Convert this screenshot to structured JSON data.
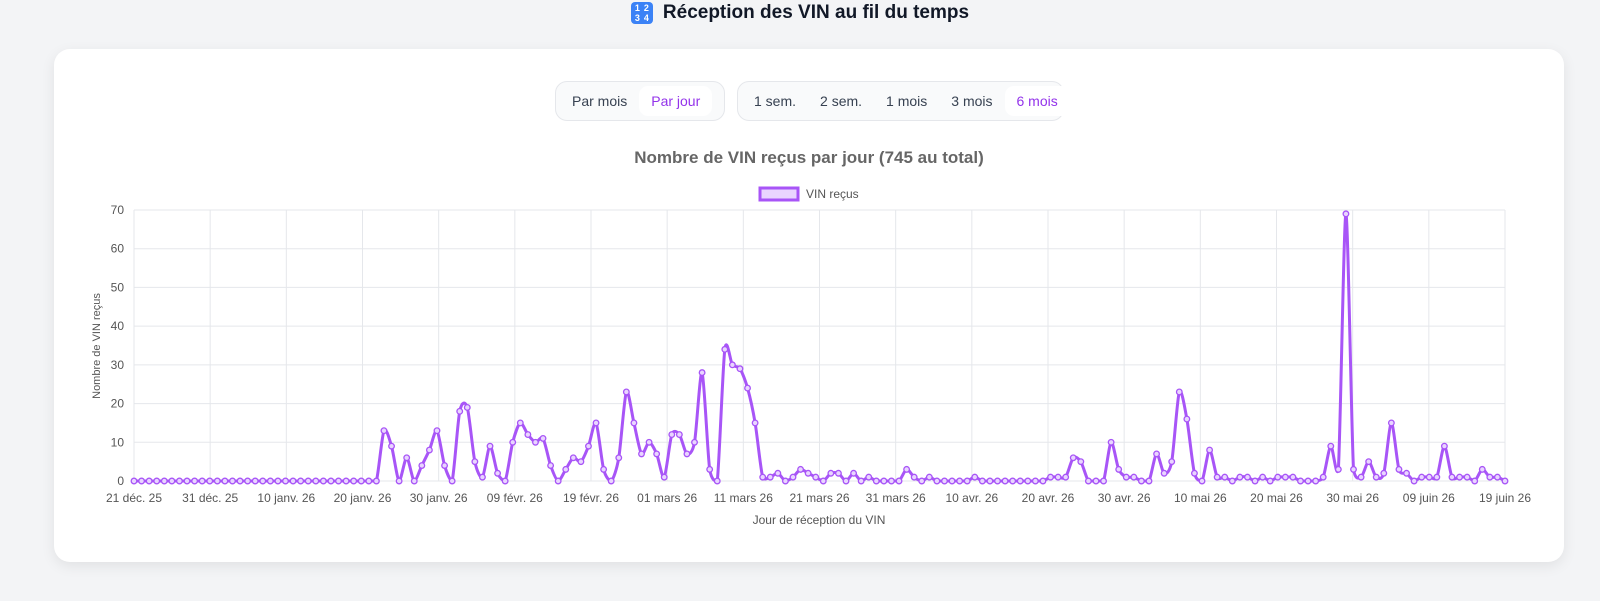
{
  "header": {
    "icon": "numbers-icon",
    "icon_glyphs": [
      "1",
      "2",
      "3",
      "4"
    ],
    "title": "Réception des VIN au fil du temps"
  },
  "controls": {
    "mode": [
      {
        "label": "Par mois",
        "active": false
      },
      {
        "label": "Par jour",
        "active": true
      }
    ],
    "range": [
      {
        "label": "1 sem.",
        "active": false
      },
      {
        "label": "2 sem.",
        "active": false
      },
      {
        "label": "1 mois",
        "active": false
      },
      {
        "label": "3 mois",
        "active": false
      },
      {
        "label": "6 mois",
        "active": true
      }
    ]
  },
  "colors": {
    "line": "#a855f7",
    "fill": "#e9d5ff",
    "accent": "#9333ea",
    "grid": "#e5e7eb"
  },
  "chart_data": {
    "type": "line",
    "title": "Nombre de VIN reçus par jour (745 au total)",
    "xlabel": "Jour de réception du VIN",
    "ylabel": "Nombre de VIN reçus",
    "ylim": [
      0,
      70
    ],
    "yticks": [
      "0",
      "10",
      "20",
      "30",
      "40",
      "50",
      "60",
      "70"
    ],
    "xtick_labels": [
      "21 déc. 25",
      "31 déc. 25",
      "10 janv. 26",
      "20 janv. 26",
      "30 janv. 26",
      "09 févr. 26",
      "19 févr. 26",
      "01 mars 26",
      "11 mars 26",
      "21 mars 26",
      "31 mars 26",
      "10 avr. 26",
      "20 avr. 26",
      "30 avr. 26",
      "10 mai 26",
      "20 mai 26",
      "30 mai 26",
      "09 juin 26",
      "19 juin 26"
    ],
    "legend": "top",
    "grid": true,
    "series": [
      {
        "name": "VIN reçus",
        "values": [
          0,
          0,
          0,
          0,
          0,
          0,
          0,
          0,
          0,
          0,
          0,
          0,
          0,
          0,
          0,
          0,
          0,
          0,
          0,
          0,
          0,
          0,
          0,
          0,
          0,
          0,
          0,
          0,
          0,
          0,
          0,
          0,
          0,
          13,
          9,
          0,
          6,
          0,
          4,
          8,
          13,
          4,
          0,
          18,
          19,
          5,
          1,
          9,
          2,
          0,
          10,
          15,
          12,
          10,
          11,
          4,
          0,
          3,
          6,
          5,
          9,
          15,
          3,
          0,
          6,
          23,
          15,
          7,
          10,
          7,
          1,
          12,
          12,
          7,
          10,
          28,
          3,
          0,
          34,
          30,
          29,
          24,
          15,
          1,
          1,
          2,
          0,
          1,
          3,
          2,
          1,
          0,
          2,
          2,
          0,
          2,
          0,
          1,
          0,
          0,
          0,
          0,
          3,
          1,
          0,
          1,
          0,
          0,
          0,
          0,
          0,
          1,
          0,
          0,
          0,
          0,
          0,
          0,
          0,
          0,
          0,
          1,
          1,
          1,
          6,
          5,
          0,
          0,
          0,
          10,
          3,
          1,
          1,
          0,
          0,
          7,
          2,
          5,
          23,
          16,
          2,
          0,
          8,
          1,
          1,
          0,
          1,
          1,
          0,
          1,
          0,
          1,
          1,
          1,
          0,
          0,
          0,
          1,
          9,
          3,
          69,
          3,
          1,
          5,
          1,
          2,
          15,
          3,
          2,
          0,
          1,
          1,
          1,
          9,
          1,
          1,
          1,
          0,
          3,
          1,
          1,
          0
        ]
      }
    ]
  }
}
